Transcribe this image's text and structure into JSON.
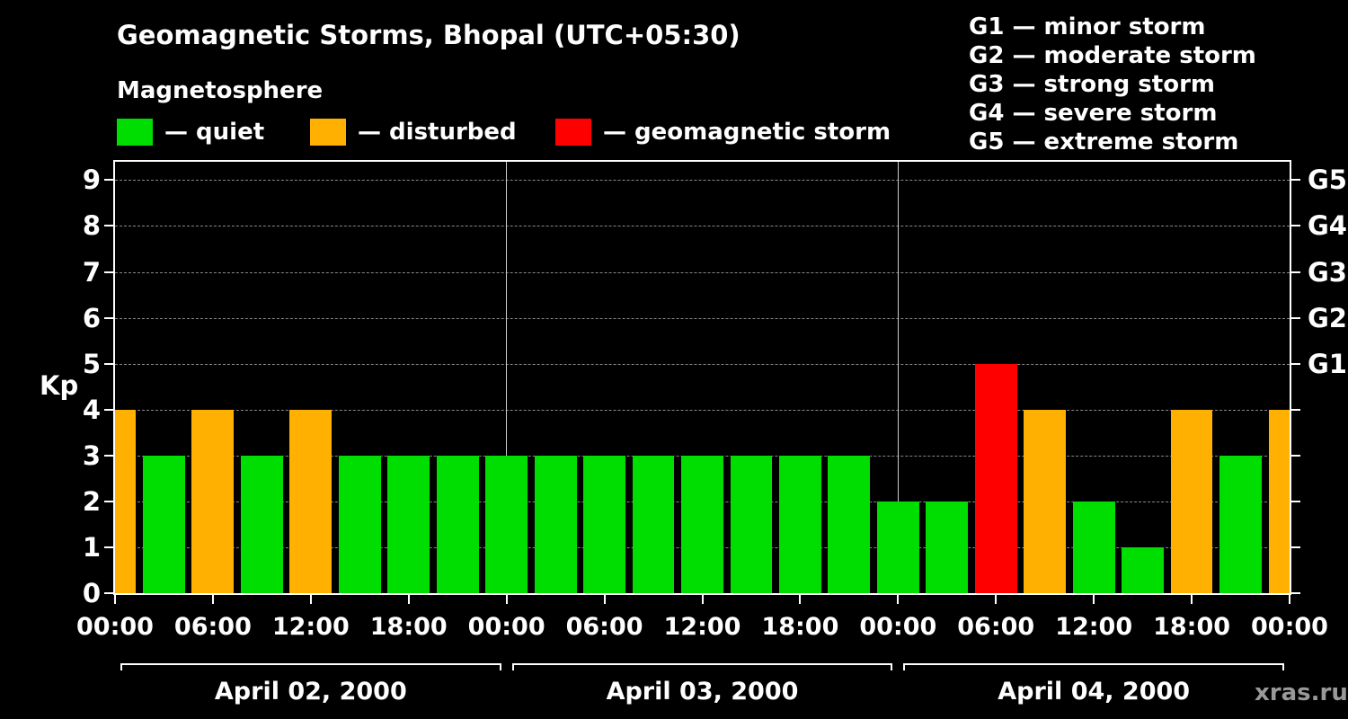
{
  "title": "Geomagnetic Storms, Bhopal (UTC+05:30)",
  "subtitle": "Magnetosphere",
  "watermark": "xras.ru",
  "colors": {
    "quiet": "#00dd00",
    "disturbed": "#ffb000",
    "storm": "#ff0000",
    "background": "#000000",
    "text": "#ffffff",
    "grid": "#888888",
    "day_divider": "#cccccc"
  },
  "legend": [
    {
      "key": "quiet",
      "label": "— quiet"
    },
    {
      "key": "disturbed",
      "label": "— disturbed"
    },
    {
      "key": "storm",
      "label": "— geomagnetic storm"
    }
  ],
  "storm_scale": [
    "G1 — minor storm",
    "G2 — moderate storm",
    "G3 — strong storm",
    "G4 — severe storm",
    "G5 — extreme storm"
  ],
  "chart_data": {
    "type": "bar",
    "title": "Geomagnetic Storms, Bhopal (UTC+05:30)",
    "ylabel": "Kp",
    "ylim": [
      0,
      9.4
    ],
    "yticks": [
      0,
      1,
      2,
      3,
      4,
      5,
      6,
      7,
      8,
      9
    ],
    "grid": "dashed horizontal at each Kp level",
    "right_axis": [
      {
        "kp": 5,
        "label": "G1"
      },
      {
        "kp": 6,
        "label": "G2"
      },
      {
        "kp": 7,
        "label": "G3"
      },
      {
        "kp": 8,
        "label": "G4"
      },
      {
        "kp": 9,
        "label": "G5"
      }
    ],
    "x_tick_hours": [
      0,
      6,
      12,
      18,
      24,
      30,
      36,
      42,
      48,
      54,
      60,
      66,
      72
    ],
    "x_tick_labels": [
      "00:00",
      "06:00",
      "12:00",
      "18:00",
      "00:00",
      "06:00",
      "12:00",
      "18:00",
      "00:00",
      "06:00",
      "12:00",
      "18:00",
      "00:00"
    ],
    "day_labels": [
      "April 02, 2000",
      "April 03, 2000",
      "April 04, 2000"
    ],
    "series_note": "3-hour Kp index, bars centered on each 3-hour mark",
    "hours": [
      0,
      3,
      6,
      9,
      12,
      15,
      18,
      21,
      24,
      27,
      30,
      33,
      36,
      39,
      42,
      45,
      48,
      51,
      54,
      57,
      60,
      63,
      66,
      69,
      72
    ],
    "values": [
      4,
      3,
      4,
      3,
      4,
      3,
      3,
      3,
      3,
      3,
      3,
      3,
      3,
      3,
      3,
      3,
      2,
      2,
      5,
      4,
      2,
      1,
      4,
      3,
      4
    ],
    "statuses": [
      "disturbed",
      "quiet",
      "disturbed",
      "quiet",
      "disturbed",
      "quiet",
      "quiet",
      "quiet",
      "quiet",
      "quiet",
      "quiet",
      "quiet",
      "quiet",
      "quiet",
      "quiet",
      "quiet",
      "quiet",
      "quiet",
      "storm",
      "disturbed",
      "quiet",
      "quiet",
      "disturbed",
      "quiet",
      "disturbed"
    ]
  }
}
